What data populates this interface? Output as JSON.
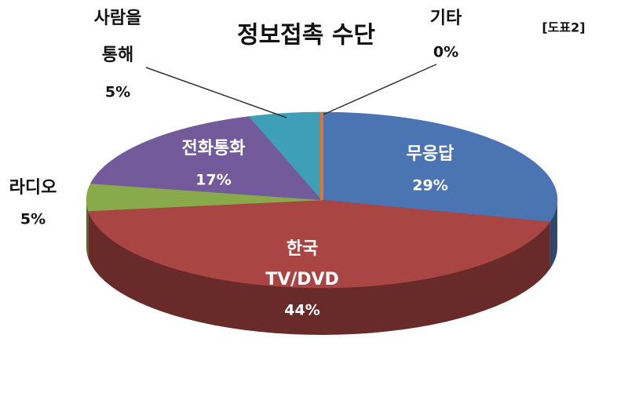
{
  "chart_data": {
    "type": "pie",
    "title": "정보접촉 수단",
    "annotation": "[도표2]",
    "categories": [
      [
        "무응답"
      ],
      [
        "한국",
        "TV/DVD"
      ],
      [
        "라디오"
      ],
      [
        "전화통화"
      ],
      [
        "사람을",
        "통해"
      ],
      [
        "기타"
      ]
    ],
    "values": [
      29,
      44,
      5,
      17,
      5,
      0
    ],
    "value_labels": [
      "29%",
      "44%",
      "5%",
      "17%",
      "5%",
      "0%"
    ],
    "colors": [
      "#4a74b2",
      "#a94542",
      "#88aa4a",
      "#735b9b",
      "#3e9fb8",
      "#e2752e"
    ]
  }
}
